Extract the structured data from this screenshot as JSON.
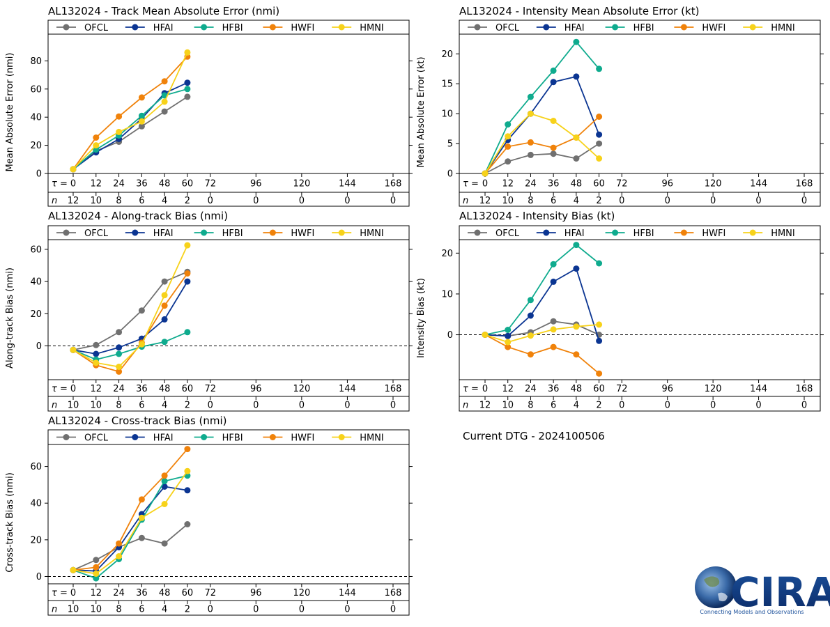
{
  "colors": {
    "OFCL": "#707070",
    "HFAI": "#0b3592",
    "HFBI": "#0fab8e",
    "HWFI": "#f0820a",
    "HMNI": "#f7d21a"
  },
  "tau_label": "= ",
  "n_label": "n",
  "tau_values": [
    0,
    12,
    24,
    36,
    48,
    60,
    72,
    96,
    120,
    144,
    168
  ],
  "current_dtg": "Current DTG - 2024100506",
  "logo": {
    "text": "CIRA",
    "tagline": "Connecting Models and Observations"
  },
  "chart_data": [
    {
      "id": "track",
      "type": "line",
      "title": "AL132024 - Track Mean Absolute Error (nmi)",
      "ylabel": "Mean Absolute Error (nmi)",
      "ylim": [
        0,
        99
      ],
      "yticks": [
        0,
        20,
        40,
        60,
        80
      ],
      "zero_line": false,
      "n_values": [
        12,
        10,
        8,
        6,
        4,
        2,
        0,
        0,
        0,
        0,
        0
      ],
      "series": [
        {
          "name": "OFCL",
          "x": [
            0,
            12,
            24,
            36,
            48,
            60
          ],
          "values": [
            3,
            16,
            22.5,
            33.5,
            44,
            54.5
          ]
        },
        {
          "name": "HFAI",
          "x": [
            0,
            12,
            24,
            36,
            48,
            60
          ],
          "values": [
            3,
            15,
            24.5,
            39,
            57,
            64.5
          ]
        },
        {
          "name": "HFBI",
          "x": [
            0,
            12,
            24,
            36,
            48,
            60
          ],
          "values": [
            3,
            17,
            27,
            41,
            55.5,
            60
          ]
        },
        {
          "name": "HWFI",
          "x": [
            0,
            12,
            24,
            36,
            48,
            60
          ],
          "values": [
            3,
            25.5,
            40.5,
            54,
            65.5,
            83
          ]
        },
        {
          "name": "HMNI",
          "x": [
            0,
            12,
            24,
            36,
            48,
            60
          ],
          "values": [
            3,
            20,
            29.5,
            37,
            51,
            86
          ]
        }
      ]
    },
    {
      "id": "intensity",
      "type": "line",
      "title": "AL132024 - Intensity Mean Absolute Error (kt)",
      "ylabel": "Mean Absolute Error (kt)",
      "ylim": [
        0,
        23.3
      ],
      "yticks": [
        0,
        5,
        10,
        15,
        20
      ],
      "zero_line": false,
      "n_values": [
        12,
        10,
        8,
        6,
        4,
        2,
        0,
        0,
        0,
        0,
        0
      ],
      "series": [
        {
          "name": "OFCL",
          "x": [
            0,
            12,
            24,
            36,
            48,
            60
          ],
          "values": [
            0,
            2,
            3.1,
            3.3,
            2.5,
            5
          ]
        },
        {
          "name": "HFAI",
          "x": [
            0,
            12,
            24,
            36,
            48,
            60
          ],
          "values": [
            0,
            5.6,
            10,
            15.3,
            16.2,
            6.5
          ]
        },
        {
          "name": "HFBI",
          "x": [
            0,
            12,
            24,
            36,
            48,
            60
          ],
          "values": [
            0,
            8.2,
            12.8,
            17.2,
            22,
            17.5
          ]
        },
        {
          "name": "HWFI",
          "x": [
            0,
            12,
            24,
            36,
            48,
            60
          ],
          "values": [
            0,
            4.5,
            5.2,
            4.3,
            6,
            9.5
          ]
        },
        {
          "name": "HMNI",
          "x": [
            0,
            12,
            24,
            36,
            48,
            60
          ],
          "values": [
            0,
            6.2,
            10,
            8.8,
            6,
            2.5
          ]
        }
      ]
    },
    {
      "id": "along",
      "type": "line",
      "title": "AL132024 - Along-track Bias (nmi)",
      "ylabel": "Along-track Bias (nmi)",
      "ylim": [
        -21,
        66
      ],
      "yticks": [
        0,
        20,
        40,
        60
      ],
      "zero_line": true,
      "n_values": [
        10,
        10,
        8,
        6,
        4,
        2,
        0,
        0,
        0,
        0,
        0
      ],
      "series": [
        {
          "name": "OFCL",
          "x": [
            0,
            12,
            24,
            36,
            48,
            60
          ],
          "values": [
            -2.5,
            0.5,
            8.5,
            22,
            40,
            46
          ]
        },
        {
          "name": "HFAI",
          "x": [
            0,
            12,
            24,
            36,
            48,
            60
          ],
          "values": [
            -2.5,
            -5,
            -1,
            4.5,
            16.5,
            40
          ]
        },
        {
          "name": "HFBI",
          "x": [
            0,
            12,
            24,
            36,
            48,
            60
          ],
          "values": [
            -2.5,
            -8.5,
            -5,
            -0.5,
            2.5,
            8.5
          ]
        },
        {
          "name": "HWFI",
          "x": [
            0,
            12,
            24,
            36,
            48,
            60
          ],
          "values": [
            -2.5,
            -12,
            -16,
            2,
            25,
            45
          ]
        },
        {
          "name": "HMNI",
          "x": [
            0,
            12,
            24,
            36,
            48,
            60
          ],
          "values": [
            -2.5,
            -10.5,
            -13,
            1,
            31.5,
            62.5
          ]
        }
      ]
    },
    {
      "id": "ibias",
      "type": "line",
      "title": "AL132024 - Intensity Bias (kt)",
      "ylabel": "Intensity Bias (kt)",
      "ylim": [
        -11,
        23.3
      ],
      "yticks": [
        0,
        10,
        20
      ],
      "zero_line": true,
      "n_values": [
        12,
        10,
        8,
        6,
        4,
        2,
        0,
        0,
        0,
        0,
        0
      ],
      "series": [
        {
          "name": "OFCL",
          "x": [
            0,
            12,
            24,
            36,
            48,
            60
          ],
          "values": [
            0,
            -0.3,
            0.6,
            3.3,
            2.5,
            0
          ]
        },
        {
          "name": "HFAI",
          "x": [
            0,
            12,
            24,
            36,
            48,
            60
          ],
          "values": [
            0,
            -0.3,
            4.7,
            13,
            16.2,
            -1.5
          ]
        },
        {
          "name": "HFBI",
          "x": [
            0,
            12,
            24,
            36,
            48,
            60
          ],
          "values": [
            0,
            1.2,
            8.5,
            17.3,
            22,
            17.5
          ]
        },
        {
          "name": "HWFI",
          "x": [
            0,
            12,
            24,
            36,
            48,
            60
          ],
          "values": [
            0,
            -3,
            -4.8,
            -3,
            -4.8,
            -9.5
          ]
        },
        {
          "name": "HMNI",
          "x": [
            0,
            12,
            24,
            36,
            48,
            60
          ],
          "values": [
            0,
            -1.8,
            -0.2,
            1.3,
            2,
            2.5
          ]
        }
      ]
    },
    {
      "id": "cross",
      "type": "line",
      "title": "AL132024 - Cross-track Bias (nmi)",
      "ylabel": "Cross-track Bias (nmi)",
      "ylim": [
        -4,
        72
      ],
      "yticks": [
        0,
        20,
        40,
        60
      ],
      "zero_line": true,
      "n_values": [
        10,
        10,
        8,
        6,
        4,
        2,
        0,
        0,
        0,
        0,
        0
      ],
      "series": [
        {
          "name": "OFCL",
          "x": [
            0,
            12,
            24,
            36,
            48,
            60
          ],
          "values": [
            3.5,
            9,
            16,
            21,
            18,
            28.5
          ]
        },
        {
          "name": "HFAI",
          "x": [
            0,
            12,
            24,
            36,
            48,
            60
          ],
          "values": [
            3.5,
            3,
            16,
            34,
            49,
            47
          ]
        },
        {
          "name": "HFBI",
          "x": [
            0,
            12,
            24,
            36,
            48,
            60
          ],
          "values": [
            3.5,
            -1,
            9.5,
            31,
            52,
            55
          ]
        },
        {
          "name": "HWFI",
          "x": [
            0,
            12,
            24,
            36,
            48,
            60
          ],
          "values": [
            3.5,
            5,
            18,
            42,
            55,
            69.5
          ]
        },
        {
          "name": "HMNI",
          "x": [
            0,
            12,
            24,
            36,
            48,
            60
          ],
          "values": [
            3.5,
            1.5,
            11,
            32,
            39.5,
            57.5
          ]
        }
      ]
    }
  ]
}
